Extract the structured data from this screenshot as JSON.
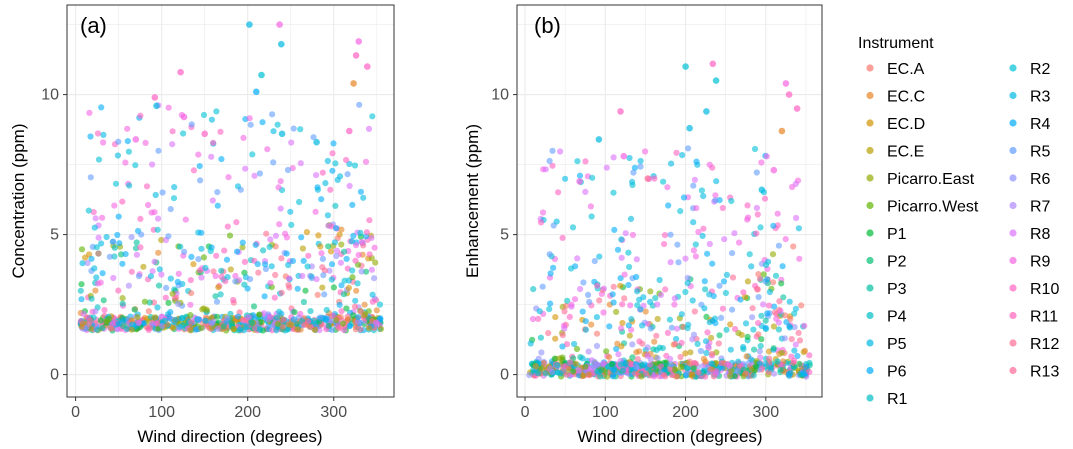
{
  "colors": {
    "EC.A": "#F8766D",
    "EC.C": "#E58700",
    "EC.D": "#C99800",
    "EC.E": "#A3A500",
    "Picarro.East": "#6BB100",
    "Picarro.West": "#00BA38",
    "P1": "#00BF7D",
    "P2": "#00C0AF",
    "P3": "#00BCD8",
    "P4": "#00B0F6",
    "P5": "#619CFF",
    "P6": "#B983FF",
    "R1": "#E76BF3",
    "R2": "#FD61D1",
    "R3": "#FF67A4",
    "R4": "#F8766D"
  },
  "chart_data": [
    {
      "type": "scatter",
      "panel_label": "(a)",
      "xlabel": "Wind direction (degrees)",
      "ylabel": "Concentration (ppm)",
      "xlim": [
        -10,
        370
      ],
      "ylim": [
        -0.8,
        13.2
      ],
      "xticks": [
        0,
        100,
        200,
        300
      ],
      "yticks": [
        0,
        5,
        10
      ],
      "grid": true,
      "baseline": 1.75,
      "points_are_sample": true,
      "highlighted_points": [
        {
          "x": 92,
          "y": 9.9,
          "series": "R10"
        },
        {
          "x": 94,
          "y": 9.6,
          "series": "R3"
        },
        {
          "x": 122,
          "y": 10.8,
          "series": "R10"
        },
        {
          "x": 126,
          "y": 9.2,
          "series": "R9"
        },
        {
          "x": 202,
          "y": 12.5,
          "series": "R3"
        },
        {
          "x": 210,
          "y": 10.1,
          "series": "R4"
        },
        {
          "x": 216,
          "y": 10.7,
          "series": "R2"
        },
        {
          "x": 237,
          "y": 12.5,
          "series": "R9"
        },
        {
          "x": 239,
          "y": 11.8,
          "series": "R3"
        },
        {
          "x": 323,
          "y": 10.4,
          "series": "EC.C"
        },
        {
          "x": 329,
          "y": 11.9,
          "series": "R9"
        },
        {
          "x": 326,
          "y": 11.4,
          "series": "R10"
        },
        {
          "x": 339,
          "y": 11.0,
          "series": "R10"
        },
        {
          "x": 70,
          "y": 8.4,
          "series": "R9"
        },
        {
          "x": 150,
          "y": 8.6,
          "series": "R10"
        },
        {
          "x": 240,
          "y": 8.6,
          "series": "R3"
        },
        {
          "x": 318,
          "y": 8.7,
          "series": "R10"
        },
        {
          "x": 280,
          "y": 8.3,
          "series": "R3"
        }
      ]
    },
    {
      "type": "scatter",
      "panel_label": "(b)",
      "xlabel": "Wind direction (degrees)",
      "ylabel": "Enhancement (ppm)",
      "xlim": [
        -10,
        370
      ],
      "ylim": [
        -0.8,
        13.2
      ],
      "xticks": [
        0,
        100,
        200,
        300
      ],
      "yticks": [
        0,
        5,
        10
      ],
      "grid": true,
      "baseline": 0.1,
      "points_are_sample": true,
      "highlighted_points": [
        {
          "x": 92,
          "y": 8.4,
          "series": "R3"
        },
        {
          "x": 119,
          "y": 9.4,
          "series": "R10"
        },
        {
          "x": 123,
          "y": 7.8,
          "series": "R9"
        },
        {
          "x": 200,
          "y": 11.0,
          "series": "R2"
        },
        {
          "x": 205,
          "y": 8.8,
          "series": "R3"
        },
        {
          "x": 226,
          "y": 9.4,
          "series": "R3"
        },
        {
          "x": 234,
          "y": 11.1,
          "series": "R10"
        },
        {
          "x": 238,
          "y": 10.5,
          "series": "R2"
        },
        {
          "x": 325,
          "y": 10.4,
          "series": "R9"
        },
        {
          "x": 329,
          "y": 10.0,
          "series": "R10"
        },
        {
          "x": 339,
          "y": 9.5,
          "series": "R10"
        },
        {
          "x": 320,
          "y": 8.7,
          "series": "EC.C"
        },
        {
          "x": 68,
          "y": 6.9,
          "series": "R9"
        },
        {
          "x": 153,
          "y": 7.0,
          "series": "R12"
        },
        {
          "x": 310,
          "y": 7.3,
          "series": "R9"
        },
        {
          "x": 295,
          "y": 6.6,
          "series": "R3"
        }
      ]
    }
  ],
  "legend": {
    "title": "Instrument",
    "placement": "right",
    "items": [
      {
        "label": "EC.A",
        "color": "#F8766D"
      },
      {
        "label": "EC.C",
        "color": "#E88526"
      },
      {
        "label": "EC.D",
        "color": "#D39200"
      },
      {
        "label": "EC.E",
        "color": "#B79F00"
      },
      {
        "label": "Picarro.East",
        "color": "#93AA00"
      },
      {
        "label": "Picarro.West",
        "color": "#5EB300"
      },
      {
        "label": "P1",
        "color": "#00BA38"
      },
      {
        "label": "P2",
        "color": "#00BF74"
      },
      {
        "label": "P3",
        "color": "#00C19F"
      },
      {
        "label": "P4",
        "color": "#00BFC4"
      },
      {
        "label": "P5",
        "color": "#00B9E3"
      },
      {
        "label": "P6",
        "color": "#00ADFA"
      },
      {
        "label": "R1",
        "color": "#00BFC4"
      },
      {
        "label": "R2",
        "color": "#00C1D6"
      },
      {
        "label": "R3",
        "color": "#00B9E3"
      },
      {
        "label": "R4",
        "color": "#00ADFA"
      },
      {
        "label": "R5",
        "color": "#619CFF"
      },
      {
        "label": "R6",
        "color": "#8F91FF"
      },
      {
        "label": "R7",
        "color": "#AE87FF"
      },
      {
        "label": "R8",
        "color": "#DB72FB"
      },
      {
        "label": "R9",
        "color": "#F564E3"
      },
      {
        "label": "R10",
        "color": "#FF61C3"
      },
      {
        "label": "R11",
        "color": "#FF62BC"
      },
      {
        "label": "R12",
        "color": "#FF6C91"
      },
      {
        "label": "R13",
        "color": "#FF6A98"
      }
    ]
  }
}
